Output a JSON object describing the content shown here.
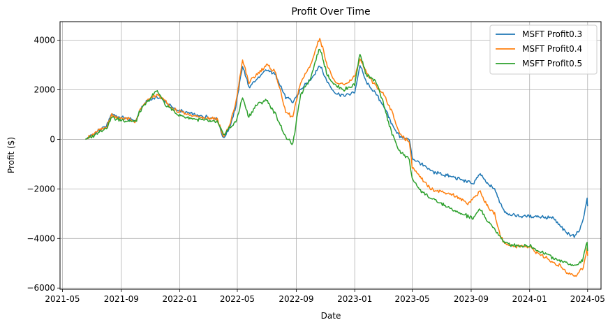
{
  "chart_data": {
    "type": "line",
    "title": "Profit Over Time",
    "xlabel": "Date",
    "ylabel": "Profit ($)",
    "x_range": [
      "2021-04-26",
      "2024-05-29"
    ],
    "ylim": [
      -6050,
      4750
    ],
    "grid": true,
    "legend_position": "top-right",
    "x_ticks": [
      "2021-05",
      "2021-09",
      "2022-01",
      "2022-05",
      "2022-09",
      "2023-01",
      "2023-05",
      "2023-09",
      "2024-01",
      "2024-05"
    ],
    "y_ticks": [
      -6000,
      -4000,
      -2000,
      0,
      2000,
      4000
    ],
    "series": [
      {
        "name": "MSFT Profit0.3",
        "color": "#1f77b4",
        "points": [
          [
            "2021-06-18",
            0
          ],
          [
            "2021-07-01",
            150
          ],
          [
            "2021-07-15",
            350
          ],
          [
            "2021-08-01",
            550
          ],
          [
            "2021-08-12",
            1050
          ],
          [
            "2021-08-25",
            900
          ],
          [
            "2021-09-10",
            850
          ],
          [
            "2021-10-01",
            750
          ],
          [
            "2021-10-10",
            1200
          ],
          [
            "2021-10-25",
            1550
          ],
          [
            "2021-11-15",
            1700
          ],
          [
            "2021-12-01",
            1550
          ],
          [
            "2021-12-15",
            1300
          ],
          [
            "2022-01-01",
            1150
          ],
          [
            "2022-01-20",
            1050
          ],
          [
            "2022-02-10",
            950
          ],
          [
            "2022-03-01",
            900
          ],
          [
            "2022-03-20",
            850
          ],
          [
            "2022-04-02",
            0
          ],
          [
            "2022-04-15",
            500
          ],
          [
            "2022-04-28",
            1300
          ],
          [
            "2022-05-12",
            3000
          ],
          [
            "2022-05-25",
            2100
          ],
          [
            "2022-06-10",
            2400
          ],
          [
            "2022-07-01",
            2800
          ],
          [
            "2022-07-20",
            2600
          ],
          [
            "2022-08-10",
            1700
          ],
          [
            "2022-08-25",
            1500
          ],
          [
            "2022-09-10",
            2000
          ],
          [
            "2022-10-01",
            2400
          ],
          [
            "2022-10-20",
            3000
          ],
          [
            "2022-11-05",
            2300
          ],
          [
            "2022-11-20",
            1900
          ],
          [
            "2022-12-10",
            1750
          ],
          [
            "2023-01-01",
            1900
          ],
          [
            "2023-01-12",
            3000
          ],
          [
            "2023-01-25",
            2300
          ],
          [
            "2023-02-15",
            1800
          ],
          [
            "2023-03-01",
            1400
          ],
          [
            "2023-03-20",
            600
          ],
          [
            "2023-04-05",
            100
          ],
          [
            "2023-04-25",
            0
          ],
          [
            "2023-05-01",
            -750
          ],
          [
            "2023-05-20",
            -1000
          ],
          [
            "2023-06-10",
            -1300
          ],
          [
            "2023-07-01",
            -1400
          ],
          [
            "2023-07-20",
            -1500
          ],
          [
            "2023-08-10",
            -1600
          ],
          [
            "2023-08-25",
            -1700
          ],
          [
            "2023-09-05",
            -1800
          ],
          [
            "2023-09-20",
            -1400
          ],
          [
            "2023-10-05",
            -1800
          ],
          [
            "2023-10-20",
            -2000
          ],
          [
            "2023-10-30",
            -2500
          ],
          [
            "2023-11-10",
            -2900
          ],
          [
            "2023-11-25",
            -3050
          ],
          [
            "2023-12-10",
            -3100
          ],
          [
            "2024-01-01",
            -3100
          ],
          [
            "2024-01-20",
            -3100
          ],
          [
            "2024-02-05",
            -3150
          ],
          [
            "2024-02-20",
            -3200
          ],
          [
            "2024-03-05",
            -3500
          ],
          [
            "2024-03-20",
            -3800
          ],
          [
            "2024-04-05",
            -3900
          ],
          [
            "2024-04-15",
            -3600
          ],
          [
            "2024-04-22",
            -3200
          ],
          [
            "2024-04-30",
            -2400
          ],
          [
            "2024-05-01",
            -2700
          ]
        ]
      },
      {
        "name": "MSFT Profit0.4",
        "color": "#ff7f0e",
        "points": [
          [
            "2021-06-18",
            0
          ],
          [
            "2021-07-01",
            150
          ],
          [
            "2021-07-15",
            350
          ],
          [
            "2021-08-01",
            500
          ],
          [
            "2021-08-12",
            1000
          ],
          [
            "2021-08-25",
            850
          ],
          [
            "2021-09-10",
            850
          ],
          [
            "2021-10-01",
            700
          ],
          [
            "2021-10-10",
            1200
          ],
          [
            "2021-10-25",
            1550
          ],
          [
            "2021-11-15",
            1800
          ],
          [
            "2021-12-01",
            1550
          ],
          [
            "2021-12-15",
            1250
          ],
          [
            "2022-01-01",
            1100
          ],
          [
            "2022-01-20",
            1000
          ],
          [
            "2022-02-10",
            900
          ],
          [
            "2022-03-01",
            850
          ],
          [
            "2022-03-20",
            850
          ],
          [
            "2022-04-02",
            100
          ],
          [
            "2022-04-15",
            550
          ],
          [
            "2022-04-28",
            1500
          ],
          [
            "2022-05-12",
            3200
          ],
          [
            "2022-05-25",
            2300
          ],
          [
            "2022-06-10",
            2600
          ],
          [
            "2022-07-01",
            3000
          ],
          [
            "2022-07-20",
            2700
          ],
          [
            "2022-08-10",
            1100
          ],
          [
            "2022-08-25",
            900
          ],
          [
            "2022-09-10",
            2300
          ],
          [
            "2022-10-01",
            3000
          ],
          [
            "2022-10-20",
            4100
          ],
          [
            "2022-11-05",
            3000
          ],
          [
            "2022-11-20",
            2300
          ],
          [
            "2022-12-10",
            2200
          ],
          [
            "2023-01-01",
            2500
          ],
          [
            "2023-01-12",
            3200
          ],
          [
            "2023-01-25",
            2700
          ],
          [
            "2023-02-15",
            2100
          ],
          [
            "2023-03-01",
            1900
          ],
          [
            "2023-03-20",
            1100
          ],
          [
            "2023-04-05",
            200
          ],
          [
            "2023-04-25",
            -100
          ],
          [
            "2023-05-01",
            -1100
          ],
          [
            "2023-05-20",
            -1600
          ],
          [
            "2023-06-10",
            -2000
          ],
          [
            "2023-07-01",
            -2100
          ],
          [
            "2023-07-20",
            -2200
          ],
          [
            "2023-08-10",
            -2400
          ],
          [
            "2023-08-25",
            -2600
          ],
          [
            "2023-09-05",
            -2400
          ],
          [
            "2023-09-20",
            -2100
          ],
          [
            "2023-10-05",
            -2700
          ],
          [
            "2023-10-20",
            -3000
          ],
          [
            "2023-10-30",
            -3800
          ],
          [
            "2023-11-10",
            -4200
          ],
          [
            "2023-11-25",
            -4300
          ],
          [
            "2023-12-10",
            -4300
          ],
          [
            "2024-01-01",
            -4350
          ],
          [
            "2024-01-20",
            -4600
          ],
          [
            "2024-02-05",
            -4800
          ],
          [
            "2024-02-20",
            -5000
          ],
          [
            "2024-03-05",
            -5100
          ],
          [
            "2024-03-20",
            -5400
          ],
          [
            "2024-04-05",
            -5500
          ],
          [
            "2024-04-15",
            -5300
          ],
          [
            "2024-04-22",
            -5200
          ],
          [
            "2024-04-30",
            -4400
          ],
          [
            "2024-05-01",
            -4700
          ]
        ]
      },
      {
        "name": "MSFT Profit0.5",
        "color": "#2ca02c",
        "points": [
          [
            "2021-06-18",
            0
          ],
          [
            "2021-07-01",
            100
          ],
          [
            "2021-07-15",
            300
          ],
          [
            "2021-08-01",
            450
          ],
          [
            "2021-08-12",
            900
          ],
          [
            "2021-08-25",
            800
          ],
          [
            "2021-09-10",
            750
          ],
          [
            "2021-10-01",
            700
          ],
          [
            "2021-10-10",
            1150
          ],
          [
            "2021-10-25",
            1500
          ],
          [
            "2021-11-15",
            2000
          ],
          [
            "2021-12-01",
            1400
          ],
          [
            "2021-12-15",
            1200
          ],
          [
            "2022-01-01",
            950
          ],
          [
            "2022-01-20",
            850
          ],
          [
            "2022-02-10",
            800
          ],
          [
            "2022-03-01",
            750
          ],
          [
            "2022-03-20",
            700
          ],
          [
            "2022-04-02",
            200
          ],
          [
            "2022-04-15",
            450
          ],
          [
            "2022-04-28",
            700
          ],
          [
            "2022-05-12",
            1700
          ],
          [
            "2022-05-25",
            900
          ],
          [
            "2022-06-10",
            1400
          ],
          [
            "2022-07-01",
            1600
          ],
          [
            "2022-07-20",
            1000
          ],
          [
            "2022-08-10",
            100
          ],
          [
            "2022-08-25",
            -200
          ],
          [
            "2022-09-10",
            1800
          ],
          [
            "2022-10-01",
            2500
          ],
          [
            "2022-10-20",
            3700
          ],
          [
            "2022-11-05",
            2600
          ],
          [
            "2022-11-20",
            2200
          ],
          [
            "2022-12-10",
            2000
          ],
          [
            "2023-01-01",
            2200
          ],
          [
            "2023-01-12",
            3500
          ],
          [
            "2023-01-25",
            2600
          ],
          [
            "2023-02-15",
            2300
          ],
          [
            "2023-03-01",
            1500
          ],
          [
            "2023-03-20",
            200
          ],
          [
            "2023-04-05",
            -500
          ],
          [
            "2023-04-25",
            -800
          ],
          [
            "2023-05-01",
            -1600
          ],
          [
            "2023-05-20",
            -2100
          ],
          [
            "2023-06-10",
            -2400
          ],
          [
            "2023-07-01",
            -2600
          ],
          [
            "2023-07-20",
            -2800
          ],
          [
            "2023-08-10",
            -3000
          ],
          [
            "2023-08-25",
            -3100
          ],
          [
            "2023-09-05",
            -3200
          ],
          [
            "2023-09-20",
            -2800
          ],
          [
            "2023-10-05",
            -3300
          ],
          [
            "2023-10-20",
            -3600
          ],
          [
            "2023-10-30",
            -3900
          ],
          [
            "2023-11-10",
            -4200
          ],
          [
            "2023-11-25",
            -4250
          ],
          [
            "2023-12-10",
            -4300
          ],
          [
            "2024-01-01",
            -4300
          ],
          [
            "2024-01-20",
            -4500
          ],
          [
            "2024-02-05",
            -4600
          ],
          [
            "2024-02-20",
            -4800
          ],
          [
            "2024-03-05",
            -4900
          ],
          [
            "2024-03-20",
            -5000
          ],
          [
            "2024-04-05",
            -5100
          ],
          [
            "2024-04-15",
            -5000
          ],
          [
            "2024-04-22",
            -4800
          ],
          [
            "2024-04-30",
            -4100
          ],
          [
            "2024-05-01",
            -4500
          ]
        ]
      }
    ]
  }
}
